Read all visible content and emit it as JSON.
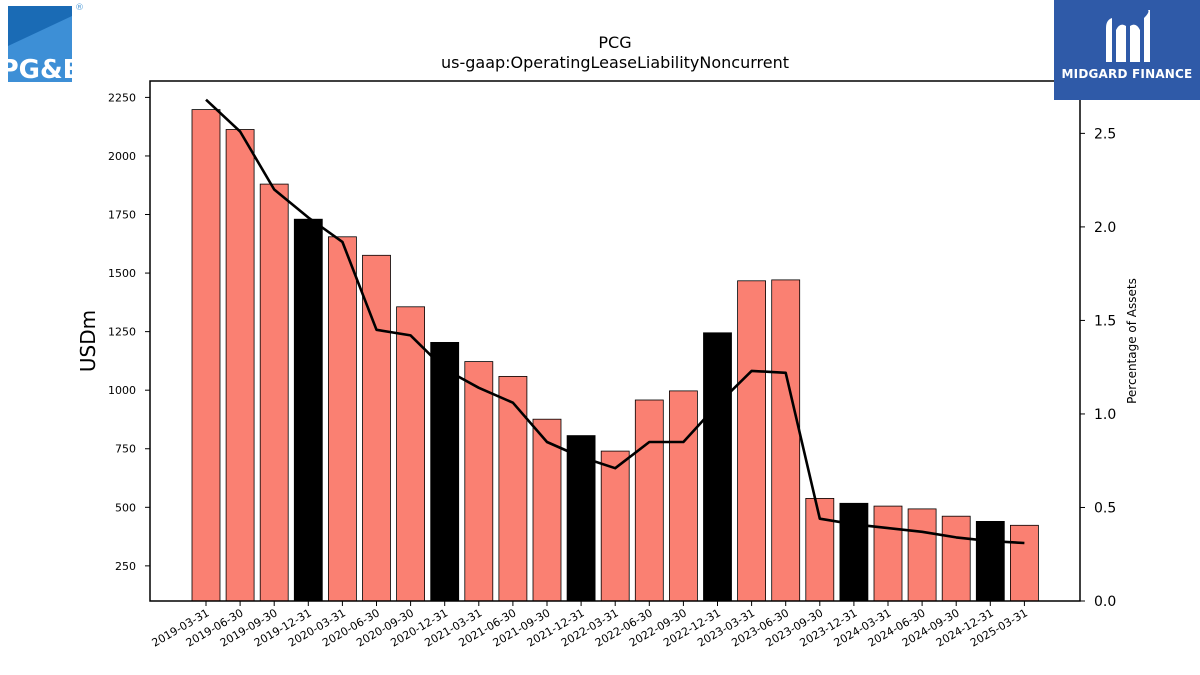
{
  "logos": {
    "left_text": "PG&E",
    "registered_mark": "®",
    "right_text": "MIDGARD FINANCE"
  },
  "colors": {
    "bar_default": "#fa8072",
    "bar_highlight": "#000000",
    "line": "#000000",
    "logo_bg": "#2f5aa8"
  },
  "chart_data": {
    "type": "bar",
    "title": "PCG",
    "subtitle": "us-gaap:OperatingLeaseLiabilityNoncurrent",
    "ylabel": "USDm",
    "y2label": "Percentage of Assets",
    "categories": [
      "2019-03-31",
      "2019-06-30",
      "2019-09-30",
      "2019-12-31",
      "2020-03-31",
      "2020-06-30",
      "2020-09-30",
      "2020-12-31",
      "2021-03-31",
      "2021-06-30",
      "2021-09-30",
      "2021-12-31",
      "2022-03-31",
      "2022-06-30",
      "2022-09-30",
      "2022-12-31",
      "2023-03-31",
      "2023-06-30",
      "2023-09-30",
      "2023-12-31",
      "2024-03-31",
      "2024-06-30",
      "2024-09-30",
      "2024-12-31",
      "2025-03-31"
    ],
    "series": [
      {
        "type": "bar",
        "values": [
          2198,
          2113,
          1880,
          1730,
          1655,
          1576,
          1356,
          1204,
          1122,
          1059,
          876,
          806,
          740,
          958,
          997,
          1245,
          1467,
          1471,
          538,
          517,
          505,
          493,
          462,
          440,
          423
        ],
        "highlight_quarter": "12-31"
      },
      {
        "type": "line",
        "axis": "right",
        "values": [
          2.68,
          2.51,
          2.2,
          2.05,
          1.92,
          1.45,
          1.42,
          1.24,
          1.14,
          1.06,
          0.85,
          0.77,
          0.71,
          0.85,
          0.85,
          1.05,
          1.23,
          1.22,
          0.44,
          0.41,
          0.39,
          0.37,
          0.34,
          0.32,
          0.31
        ]
      }
    ],
    "ylim": [
      100,
      2320
    ],
    "yticks": [
      250,
      500,
      750,
      1000,
      1250,
      1500,
      1750,
      2000,
      2250
    ],
    "y2lim": [
      0,
      2.78
    ],
    "y2ticks": [
      "0.0",
      "0.5",
      "1.0",
      "1.5",
      "2.0",
      "2.5"
    ],
    "grid": false,
    "legend": "none"
  }
}
